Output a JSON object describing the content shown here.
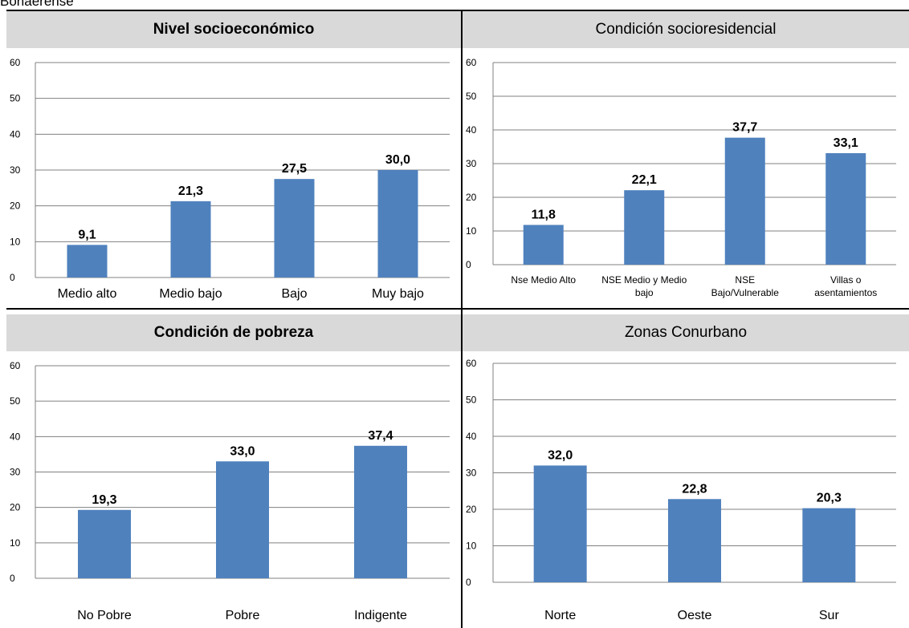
{
  "header": {
    "partial_text": "Bonaerense"
  },
  "colors": {
    "bar": "#4f81bd",
    "grid": "#808080",
    "panel_title_bg": "#d9d9d9"
  },
  "chart_data": [
    {
      "type": "bar",
      "title": "Nivel socioeconómico",
      "categories": [
        "Medio alto",
        "Medio bajo",
        "Bajo",
        "Muy bajo"
      ],
      "values": [
        9.1,
        21.3,
        27.5,
        30.0
      ],
      "value_labels": [
        "9,1",
        "21,3",
        "27,5",
        "30,0"
      ],
      "ylim": [
        0,
        60
      ],
      "yticks": [
        0,
        10,
        20,
        30,
        40,
        50,
        60
      ],
      "grid": true
    },
    {
      "type": "bar",
      "title": "Condición socioresidencial",
      "categories": [
        "Nse Medio Alto",
        "NSE Medio y Medio bajo",
        "NSE Bajo/Vulnerable",
        "Villas o asentamientos"
      ],
      "category_lines": [
        [
          "Nse Medio Alto"
        ],
        [
          "NSE Medio y Medio",
          "bajo"
        ],
        [
          "NSE",
          "Bajo/Vulnerable"
        ],
        [
          "Villas o",
          "asentamientos"
        ]
      ],
      "values": [
        11.8,
        22.1,
        37.7,
        33.1
      ],
      "value_labels": [
        "11,8",
        "22,1",
        "37,7",
        "33,1"
      ],
      "ylim": [
        0,
        60
      ],
      "yticks": [
        0,
        10,
        20,
        30,
        40,
        50,
        60
      ],
      "grid": true
    },
    {
      "type": "bar",
      "title": "Condición de pobreza",
      "categories": [
        "No Pobre",
        "Pobre",
        "Indigente"
      ],
      "values": [
        19.3,
        33.0,
        37.4
      ],
      "value_labels": [
        "19,3",
        "33,0",
        "37,4"
      ],
      "ylim": [
        0,
        60
      ],
      "yticks": [
        0,
        10,
        20,
        30,
        40,
        50,
        60
      ],
      "grid": true
    },
    {
      "type": "bar",
      "title": "Zonas Conurbano",
      "categories": [
        "Norte",
        "Oeste",
        "Sur"
      ],
      "values": [
        32.0,
        22.8,
        20.3
      ],
      "value_labels": [
        "32,0",
        "22,8",
        "20,3"
      ],
      "ylim": [
        0,
        60
      ],
      "yticks": [
        0,
        10,
        20,
        30,
        40,
        50,
        60
      ],
      "grid": true
    }
  ]
}
